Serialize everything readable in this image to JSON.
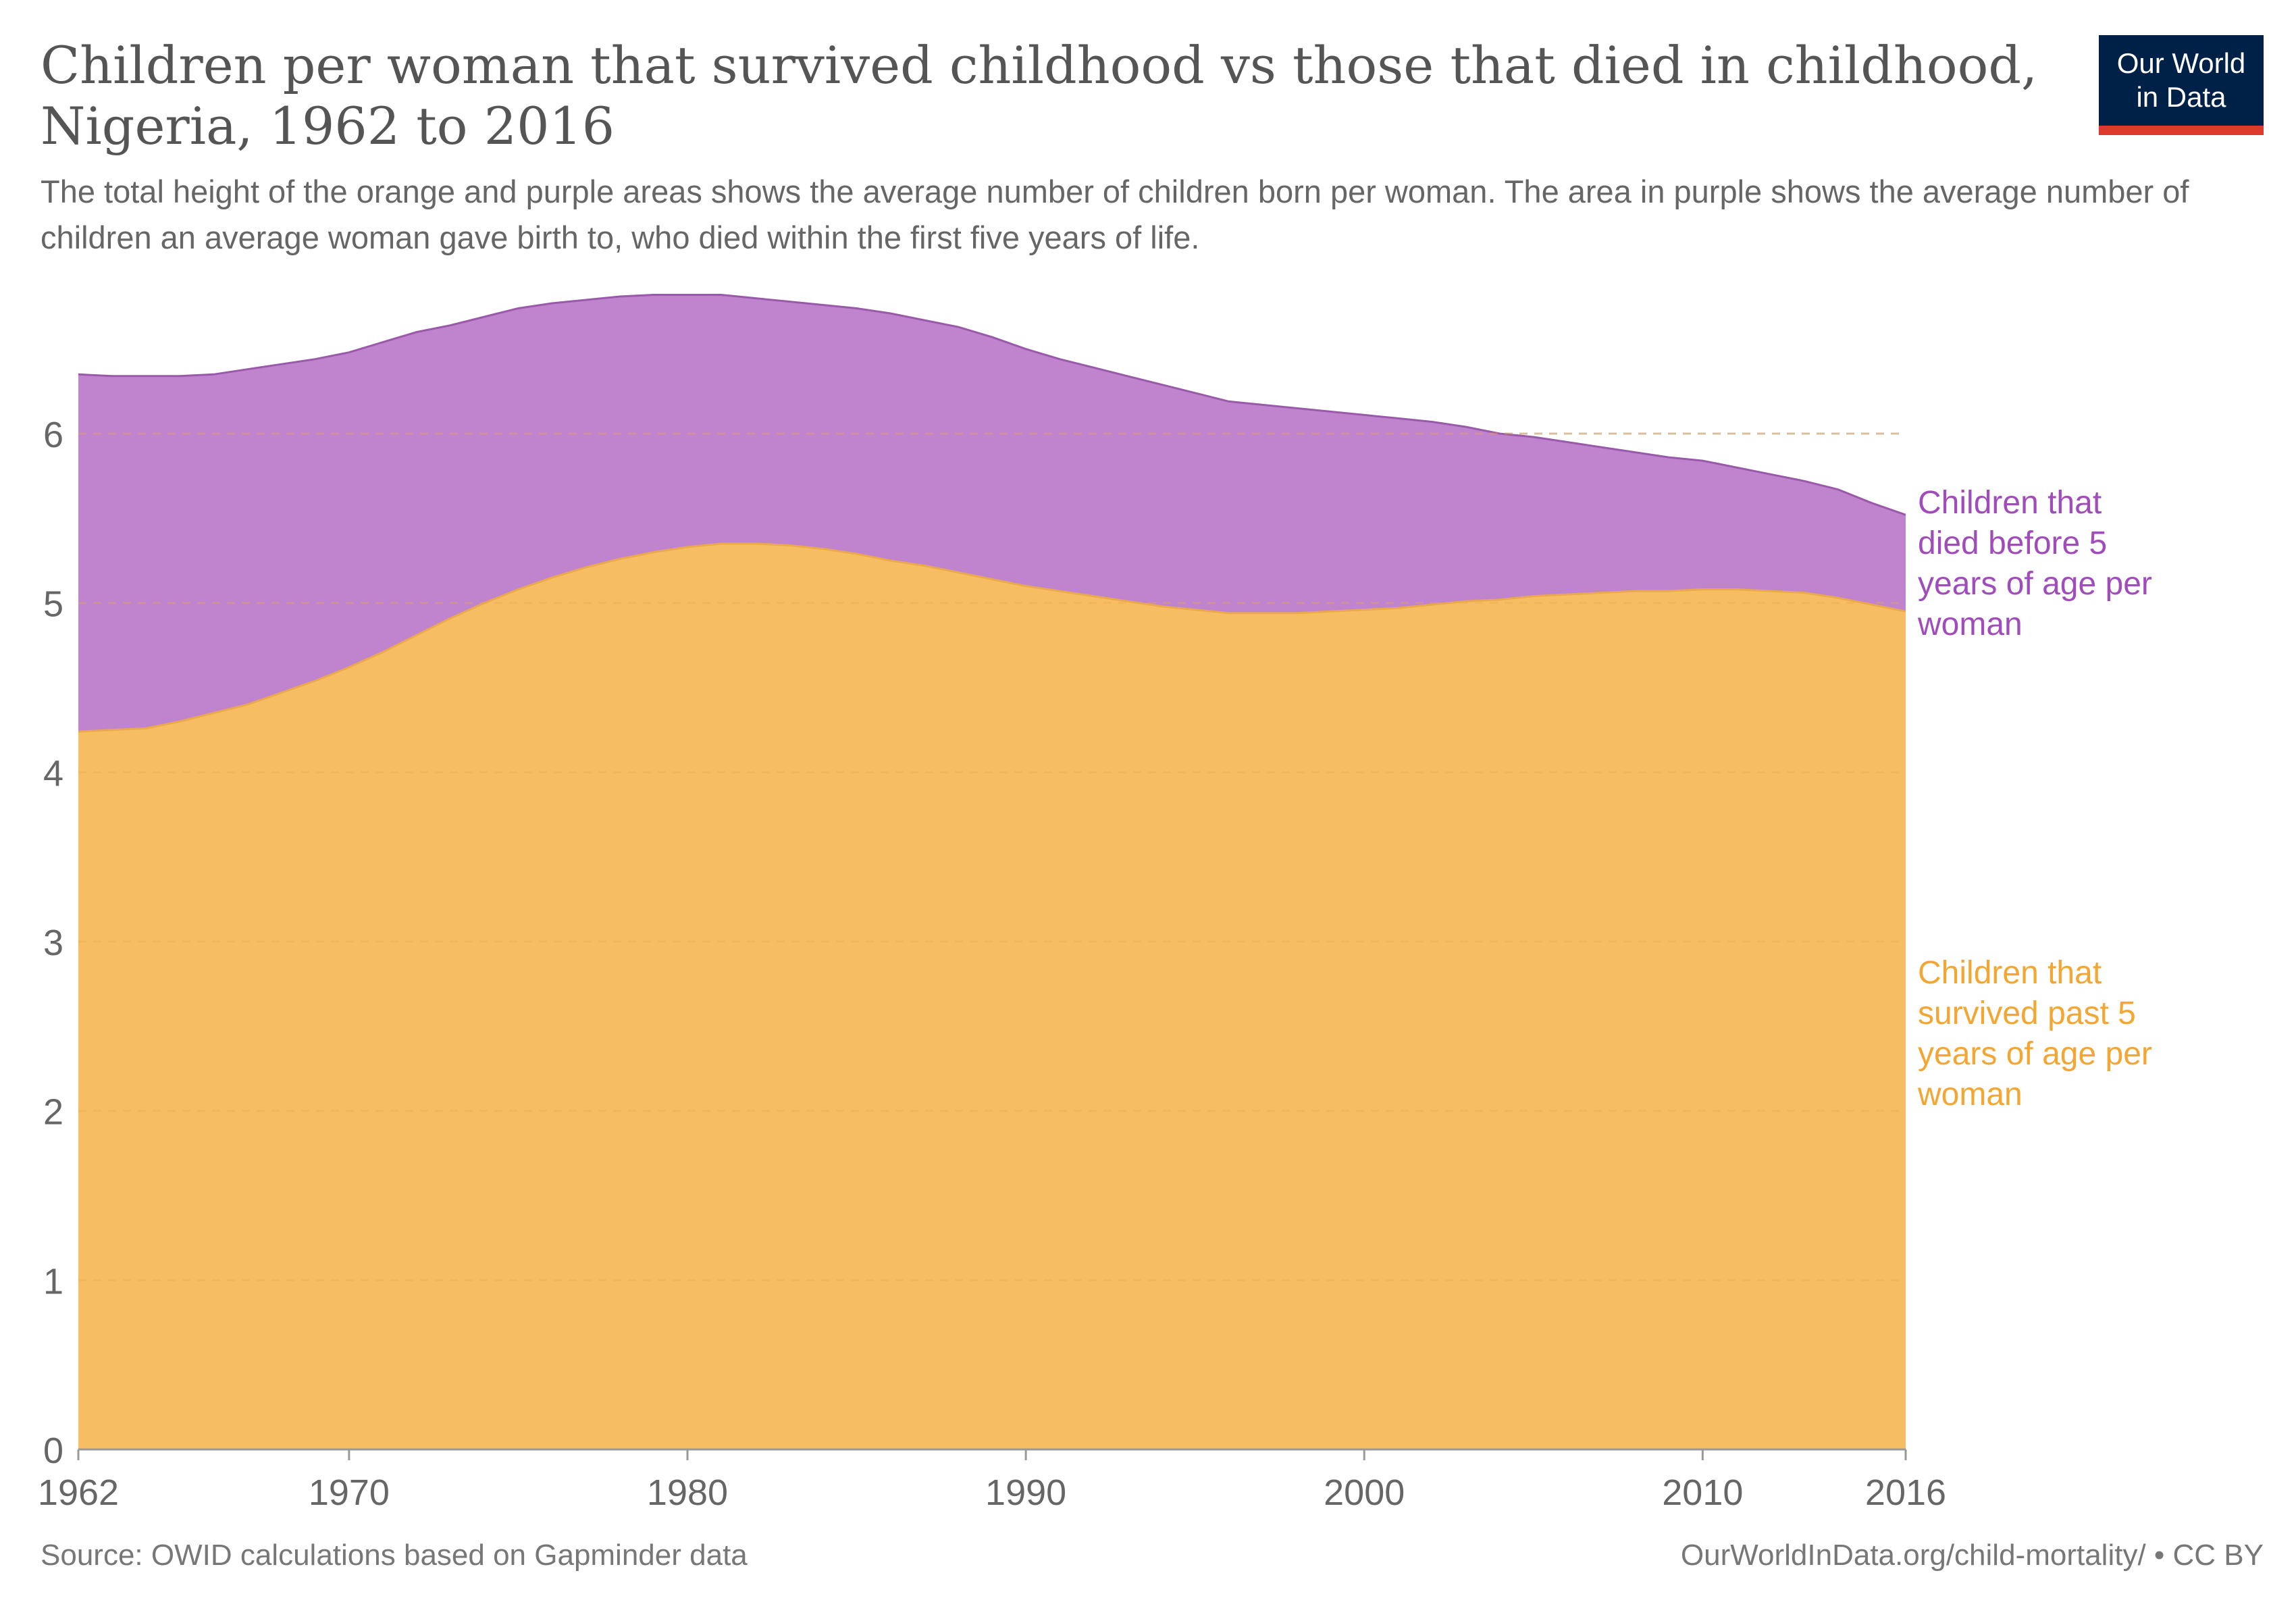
{
  "header": {
    "title": "Children per woman that survived childhood vs those that died in childhood, Nigeria, 1962 to 2016",
    "subtitle": "The total height of the orange and purple areas shows the average number of children born per woman. The area in purple shows the average number of children an average woman gave birth to, who died within the first five years of life."
  },
  "logo": {
    "line1": "Our World",
    "line2": "in Data"
  },
  "footer": {
    "source": "Source: OWID calculations based on Gapminder data",
    "url": "OurWorldInData.org/child-mortality/ • CC BY"
  },
  "colors": {
    "survived": "#f7bd63",
    "died": "#c084cf",
    "survived_label": "#f3a631",
    "died_label": "#a04cba",
    "axis_text": "#666666",
    "grid": "#cccccc"
  },
  "chart_data": {
    "type": "area",
    "stacked": true,
    "x": [
      1962,
      1963,
      1964,
      1965,
      1966,
      1967,
      1968,
      1969,
      1970,
      1971,
      1972,
      1973,
      1974,
      1975,
      1976,
      1977,
      1978,
      1979,
      1980,
      1981,
      1982,
      1983,
      1984,
      1985,
      1986,
      1987,
      1988,
      1989,
      1990,
      1991,
      1992,
      1993,
      1994,
      1995,
      1996,
      1997,
      1998,
      1999,
      2000,
      2001,
      2002,
      2003,
      2004,
      2005,
      2006,
      2007,
      2008,
      2009,
      2010,
      2011,
      2012,
      2013,
      2014,
      2015,
      2016
    ],
    "series": [
      {
        "name": "Children that survived past 5 years of age per woman",
        "color": "#f7bd63",
        "values": [
          4.24,
          4.25,
          4.26,
          4.3,
          4.35,
          4.4,
          4.47,
          4.54,
          4.62,
          4.71,
          4.81,
          4.91,
          5.0,
          5.08,
          5.15,
          5.21,
          5.26,
          5.3,
          5.33,
          5.35,
          5.35,
          5.34,
          5.32,
          5.29,
          5.25,
          5.22,
          5.18,
          5.14,
          5.1,
          5.07,
          5.04,
          5.01,
          4.98,
          4.96,
          4.94,
          4.94,
          4.94,
          4.95,
          4.96,
          4.97,
          4.99,
          5.01,
          5.02,
          5.04,
          5.05,
          5.06,
          5.07,
          5.07,
          5.08,
          5.08,
          5.07,
          5.06,
          5.03,
          4.99,
          4.95
        ]
      },
      {
        "name": "Children that died before 5 years of age per woman",
        "color": "#c084cf",
        "values": [
          2.11,
          2.09,
          2.08,
          2.04,
          2.0,
          1.98,
          1.94,
          1.9,
          1.86,
          1.83,
          1.79,
          1.73,
          1.69,
          1.66,
          1.62,
          1.58,
          1.55,
          1.52,
          1.49,
          1.47,
          1.45,
          1.44,
          1.44,
          1.45,
          1.46,
          1.45,
          1.45,
          1.43,
          1.4,
          1.37,
          1.35,
          1.33,
          1.31,
          1.28,
          1.25,
          1.23,
          1.21,
          1.18,
          1.15,
          1.12,
          1.08,
          1.03,
          0.98,
          0.94,
          0.9,
          0.86,
          0.82,
          0.79,
          0.76,
          0.72,
          0.69,
          0.66,
          0.64,
          0.6,
          0.57
        ]
      }
    ],
    "xticks": [
      "1962",
      "1970",
      "1980",
      "1990",
      "2000",
      "2010",
      "2016"
    ],
    "ytick_labels": [
      "0",
      "1",
      "2",
      "3",
      "4",
      "5",
      "6"
    ],
    "xlim": [
      1962,
      2016
    ],
    "ylim": [
      0,
      6.8
    ],
    "grid": "horizontal dashed",
    "legend": "inline labels at right",
    "series_labels": {
      "died": [
        "Children that",
        "died before 5",
        "years of age per",
        "woman"
      ],
      "survived": [
        "Children that",
        "survived past 5",
        "years of age per",
        "woman"
      ]
    }
  }
}
